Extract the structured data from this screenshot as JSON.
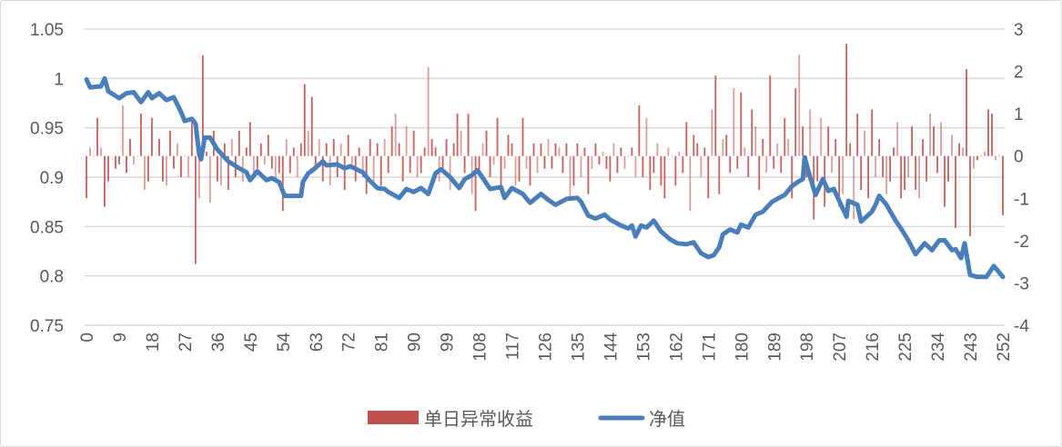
{
  "chart_data": {
    "type": "bar+line",
    "title": "",
    "xlabel": "",
    "ylabel_left": "",
    "ylabel_right": "",
    "x_ticks": [
      "0",
      "9",
      "18",
      "27",
      "36",
      "45",
      "54",
      "63",
      "72",
      "81",
      "90",
      "99",
      "108",
      "117",
      "126",
      "135",
      "144",
      "153",
      "162",
      "171",
      "180",
      "189",
      "198",
      "207",
      "216",
      "225",
      "234",
      "243",
      "252"
    ],
    "y_left_ticks": [
      "1.05",
      "1",
      "0.95",
      "0.9",
      "0.85",
      "0.8",
      "0.75"
    ],
    "y_left_range": [
      0.75,
      1.05
    ],
    "y_right_ticks": [
      "3",
      "2",
      "1",
      "0",
      "-1",
      "-2",
      "-3",
      "-4"
    ],
    "y_right_range": [
      -4,
      3
    ],
    "x_range": [
      0,
      252
    ],
    "grid": true,
    "legend_position": "bottom",
    "colors": {
      "bars": "#c0504d",
      "line": "#4a7ebb",
      "grid": "#d9d9d9"
    },
    "series": [
      {
        "name": "单日异常收益",
        "type": "bar",
        "axis": "right",
        "values": [
          -1.0,
          0.2,
          0.0,
          0.9,
          0.2,
          -1.2,
          -0.6,
          0.0,
          -0.3,
          -0.2,
          1.2,
          -0.4,
          0.4,
          -0.2,
          0.0,
          1.0,
          -0.8,
          -0.6,
          0.9,
          0.0,
          0.4,
          -0.6,
          -0.7,
          0.6,
          -0.3,
          0.3,
          -0.5,
          0.0,
          -0.5,
          0.8,
          -2.55,
          -1.0,
          2.38,
          0.1,
          -1.1,
          0.6,
          -0.6,
          -0.7,
          0.3,
          -0.8,
          0.4,
          -0.5,
          0.6,
          -0.6,
          0.2,
          0.8,
          -0.5,
          -0.3,
          0.3,
          -0.2,
          0.5,
          -0.3,
          -0.6,
          -0.4,
          -1.3,
          0.4,
          -0.4,
          0.2,
          -0.5,
          0.3,
          1.7,
          0.6,
          1.4,
          -0.3,
          0.4,
          -0.6,
          0.3,
          -0.7,
          0.4,
          -0.5,
          0.3,
          -0.8,
          0.5,
          -0.3,
          -0.6,
          0.2,
          -0.5,
          -0.9,
          0.4,
          -0.6,
          0.3,
          -0.7,
          0.4,
          -0.4,
          0.7,
          1.0,
          0.3,
          -0.6,
          0.7,
          -0.4,
          0.6,
          -0.5,
          -0.4,
          0.2,
          2.1,
          0.4,
          0.2,
          -0.6,
          -0.3,
          0.4,
          -0.8,
          0.3,
          1.0,
          0.6,
          -0.4,
          1.0,
          -0.9,
          -1.3,
          -0.4,
          0.3,
          0.6,
          -0.5,
          -0.2,
          0.9,
          -0.7,
          -0.3,
          0.5,
          0.3,
          -0.7,
          -0.6,
          0.9,
          -0.3,
          -0.7,
          0.3,
          -0.4,
          0.3,
          -0.3,
          0.4,
          -0.3,
          0.3,
          0.2,
          -0.4,
          0.3,
          -1.0,
          -0.7,
          0.3,
          -0.5,
          0.2,
          -0.9,
          -0.3,
          0.3,
          -0.2,
          0.1,
          -0.3,
          -0.6,
          0.3,
          -0.4,
          0.2,
          -0.3,
          0.0,
          0.2,
          -0.5,
          1.2,
          -0.5,
          0.9,
          -0.8,
          -0.4,
          0.3,
          -0.7,
          -1.0,
          0.2,
          0.0,
          -0.7,
          0.1,
          -0.4,
          0.8,
          -1.3,
          0.5,
          0.3,
          -0.5,
          0.2,
          -1.0,
          1.1,
          1.9,
          -0.9,
          0.4,
          0.5,
          -0.4,
          1.6,
          -0.3,
          1.5,
          0.2,
          -0.5,
          1.1,
          0.7,
          -0.8,
          0.4,
          -0.4,
          1.9,
          -0.3,
          0.3,
          -0.4,
          0.9,
          0.4,
          -1.0,
          1.6,
          2.4,
          0.7,
          -0.5,
          1.1,
          -1.5,
          -0.6,
          0.9,
          -1.2,
          0.7,
          -0.4,
          0.4,
          -1.2,
          -0.9,
          2.65,
          0.3,
          -1.5,
          1.0,
          -0.8,
          0.6,
          -1.0,
          1.1,
          -0.5,
          0.4,
          -0.5,
          -0.9,
          -0.6,
          0.2,
          0.8,
          -1.0,
          -0.8,
          -0.5,
          0.7,
          -0.8,
          -1.0,
          0.4,
          -0.6,
          1.0,
          0.7,
          -0.4,
          0.8,
          -1.2,
          -0.6,
          0.5,
          -1.7,
          0.3,
          0.2,
          2.05,
          -1.9,
          -0.3,
          -0.1,
          0.0,
          0.1,
          1.1,
          1.0,
          -0.1,
          0.0,
          -1.4
        ]
      },
      {
        "name": "净值",
        "type": "line",
        "axis": "left",
        "x": [
          0,
          1,
          4,
          5,
          6,
          9,
          11,
          13,
          15,
          17,
          18,
          20,
          22,
          24,
          26,
          27,
          29,
          30,
          31,
          31.5,
          32.5,
          34,
          36,
          39,
          42,
          44,
          45,
          47,
          49.5,
          51,
          53,
          54.5,
          56,
          59,
          59.5,
          61,
          62.5,
          65,
          66,
          69,
          71,
          72.5,
          76,
          77.5,
          80,
          82,
          83,
          86,
          88,
          90,
          92,
          94,
          96,
          97.5,
          100,
          102.5,
          104,
          106,
          107.5,
          109,
          111,
          114,
          115,
          117,
          120,
          122,
          125,
          127,
          129,
          132,
          135,
          136,
          138,
          140,
          142.5,
          144,
          147,
          149,
          150,
          151,
          152.5,
          154,
          156,
          158,
          160.5,
          162.5,
          165,
          167,
          169,
          171,
          172.5,
          174,
          175,
          177,
          179,
          180,
          182,
          184,
          186,
          188.5,
          191,
          192,
          194,
          196,
          197,
          197.5,
          199,
          200.5,
          202.5,
          204,
          205.5,
          207.5,
          209,
          209.5,
          212,
          213,
          216,
          217,
          218,
          220,
          222.5,
          224,
          226,
          228,
          230.5,
          232.5,
          234.5,
          236,
          238,
          239,
          240.5,
          241.5,
          243,
          245,
          247.5,
          249.5,
          250,
          252
        ],
        "y": [
          0.999,
          0.991,
          0.992,
          1.0,
          0.987,
          0.98,
          0.985,
          0.986,
          0.976,
          0.986,
          0.98,
          0.985,
          0.978,
          0.981,
          0.966,
          0.957,
          0.959,
          0.954,
          0.923,
          0.918,
          0.94,
          0.94,
          0.928,
          0.916,
          0.909,
          0.905,
          0.897,
          0.906,
          0.897,
          0.899,
          0.895,
          0.881,
          0.881,
          0.881,
          0.895,
          0.904,
          0.908,
          0.916,
          0.912,
          0.913,
          0.909,
          0.911,
          0.905,
          0.898,
          0.889,
          0.888,
          0.885,
          0.879,
          0.888,
          0.885,
          0.889,
          0.883,
          0.904,
          0.908,
          0.9,
          0.889,
          0.898,
          0.902,
          0.907,
          0.899,
          0.888,
          0.89,
          0.879,
          0.889,
          0.883,
          0.874,
          0.883,
          0.877,
          0.872,
          0.878,
          0.879,
          0.875,
          0.861,
          0.858,
          0.862,
          0.857,
          0.851,
          0.848,
          0.851,
          0.84,
          0.851,
          0.849,
          0.856,
          0.845,
          0.837,
          0.833,
          0.832,
          0.834,
          0.823,
          0.819,
          0.821,
          0.829,
          0.842,
          0.847,
          0.844,
          0.852,
          0.849,
          0.862,
          0.865,
          0.875,
          0.88,
          0.882,
          0.891,
          0.896,
          0.898,
          0.92,
          0.9,
          0.882,
          0.898,
          0.886,
          0.888,
          0.872,
          0.86,
          0.876,
          0.872,
          0.855,
          0.865,
          0.872,
          0.881,
          0.872,
          0.856,
          0.848,
          0.836,
          0.822,
          0.833,
          0.826,
          0.836,
          0.836,
          0.826,
          0.827,
          0.818,
          0.833,
          0.801,
          0.799,
          0.799,
          0.81,
          0.808,
          0.799
        ]
      }
    ]
  },
  "legend": {
    "bar_label": "单日异常收益",
    "line_label": "净值"
  }
}
